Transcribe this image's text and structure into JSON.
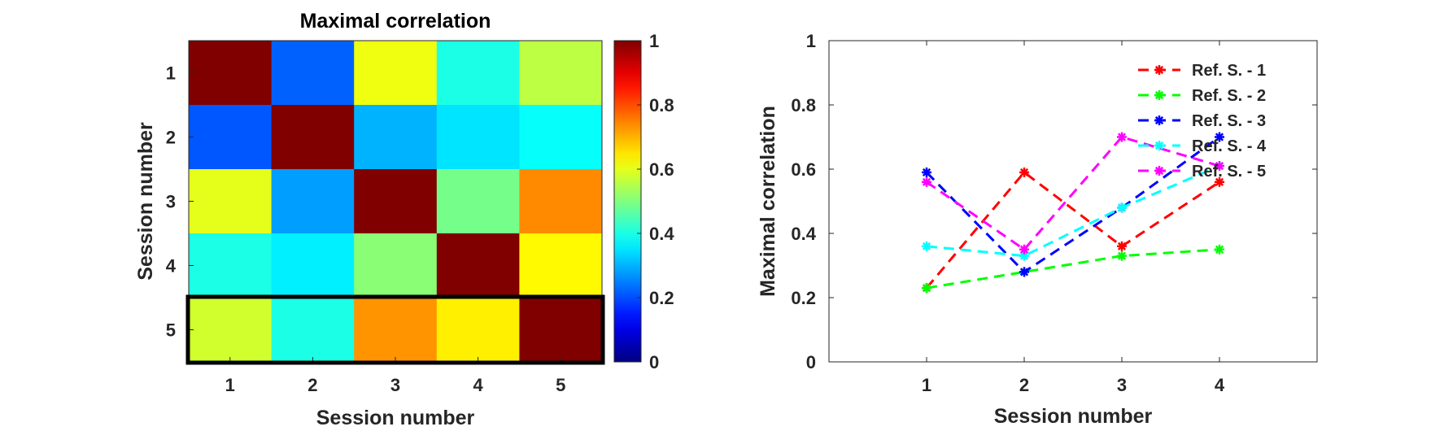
{
  "chart_data": [
    {
      "type": "heatmap",
      "title": "Maximal correlation",
      "xlabel": "Session number",
      "ylabel": "Session number",
      "x_categories": [
        "1",
        "2",
        "3",
        "4",
        "5"
      ],
      "y_categories": [
        "1",
        "2",
        "3",
        "4",
        "5"
      ],
      "values": [
        [
          1.0,
          0.22,
          0.61,
          0.4,
          0.56
        ],
        [
          0.21,
          1.0,
          0.3,
          0.35,
          0.38
        ],
        [
          0.6,
          0.28,
          1.0,
          0.49,
          0.74
        ],
        [
          0.4,
          0.36,
          0.51,
          1.0,
          0.63
        ],
        [
          0.58,
          0.4,
          0.73,
          0.64,
          1.0
        ]
      ],
      "highlighted_row": "5",
      "colorbar": {
        "colormap": "jet",
        "range": [
          0,
          1
        ],
        "ticks": [
          "0",
          "0.2",
          "0.4",
          "0.6",
          "0.8",
          "1"
        ]
      }
    },
    {
      "type": "line",
      "title": "",
      "xlabel": "Session number",
      "ylabel": "Maximal correlation",
      "xlim": [
        0,
        5
      ],
      "ylim": [
        0,
        1
      ],
      "x_ticks": [
        "1",
        "2",
        "3",
        "4"
      ],
      "y_ticks": [
        "0",
        "0.2",
        "0.4",
        "0.6",
        "0.8",
        "1"
      ],
      "legend_position": "top-right",
      "line_style": "dashed",
      "marker": "asterisk",
      "series": [
        {
          "name": "Ref. S. - 1",
          "color": "#ff0000",
          "x": [
            1,
            2,
            3,
            4
          ],
          "y": [
            0.23,
            0.59,
            0.36,
            0.56
          ]
        },
        {
          "name": "Ref. S. - 2",
          "color": "#00ff00",
          "x": [
            1,
            2,
            3,
            4
          ],
          "y": [
            0.23,
            0.28,
            0.33,
            0.35
          ]
        },
        {
          "name": "Ref. S. - 3",
          "color": "#0000ff",
          "x": [
            1,
            2,
            3,
            4
          ],
          "y": [
            0.59,
            0.28,
            0.48,
            0.7
          ]
        },
        {
          "name": "Ref. S. - 4",
          "color": "#00ffff",
          "x": [
            1,
            2,
            3,
            4
          ],
          "y": [
            0.36,
            0.33,
            0.48,
            0.61
          ]
        },
        {
          "name": "Ref. S. - 5",
          "color": "#ff00ff",
          "x": [
            1,
            2,
            3,
            4
          ],
          "y": [
            0.56,
            0.35,
            0.7,
            0.61
          ]
        }
      ]
    }
  ]
}
